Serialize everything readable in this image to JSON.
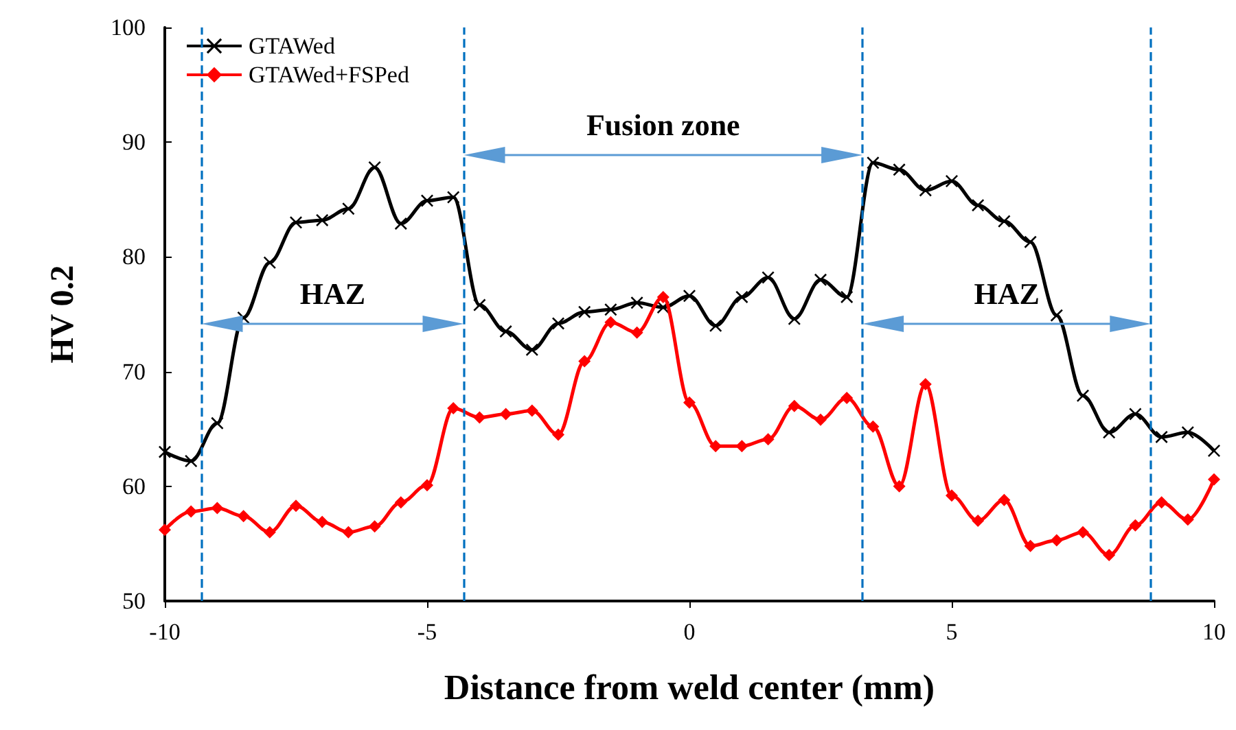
{
  "chart_data": {
    "type": "line",
    "xlabel": "Distance from weld center (mm)",
    "ylabel": "HV 0.2",
    "x": [
      -10,
      -9.5,
      -9,
      -8.5,
      -8,
      -7.5,
      -7,
      -6.5,
      -6,
      -5.5,
      -5,
      -4.5,
      -4,
      -3.5,
      -3,
      -2.5,
      -2,
      -1.5,
      -1,
      -0.5,
      0,
      0.5,
      1,
      1.5,
      2,
      2.5,
      3,
      3.5,
      4,
      4.5,
      5,
      5.5,
      6,
      6.5,
      7,
      7.5,
      8,
      8.5,
      9,
      9.5,
      10
    ],
    "series": [
      {
        "name": "GTAWed",
        "color": "#000000",
        "marker": "cross",
        "values": [
          63.0,
          62.2,
          65.5,
          74.7,
          79.5,
          83.0,
          83.2,
          84.2,
          87.8,
          82.9,
          84.9,
          85.2,
          75.8,
          73.5,
          71.9,
          74.2,
          75.2,
          75.4,
          76.0,
          75.6,
          76.6,
          74.0,
          76.5,
          78.2,
          74.6,
          78.0,
          76.5,
          88.2,
          87.6,
          85.8,
          86.6,
          84.5,
          83.1,
          81.3,
          74.9,
          67.9,
          64.7,
          66.3,
          64.3,
          64.7,
          63.1
        ]
      },
      {
        "name": "GTAWed+FSPed",
        "color": "#ff0000",
        "marker": "diamond",
        "values": [
          56.2,
          57.8,
          58.1,
          57.4,
          56.0,
          58.3,
          56.9,
          56.0,
          56.5,
          58.6,
          60.1,
          66.8,
          66.0,
          66.3,
          66.6,
          64.5,
          70.9,
          74.3,
          73.4,
          76.5,
          67.3,
          63.5,
          63.5,
          64.1,
          67.0,
          65.8,
          67.7,
          65.2,
          60.0,
          68.9,
          59.2,
          57.0,
          58.8,
          54.8,
          55.3,
          56.0,
          54.0,
          56.6,
          58.6,
          57.1,
          60.6
        ]
      }
    ],
    "xlim": [
      -10,
      10
    ],
    "xticks": [
      -10,
      -5,
      0,
      5,
      10
    ],
    "ylim": [
      50,
      100
    ],
    "yticks": [
      50,
      60,
      70,
      80,
      90,
      100
    ],
    "ref_lines": [
      {
        "axis": "x",
        "value": -9.3,
        "color": "#0070c0",
        "line_style": "dashed"
      },
      {
        "axis": "x",
        "value": -4.3,
        "color": "#0070c0",
        "line_style": "dashed"
      },
      {
        "axis": "x",
        "value": 3.3,
        "color": "#0070c0",
        "line_style": "dashed"
      },
      {
        "axis": "x",
        "value": 8.8,
        "color": "#0070c0",
        "line_style": "dashed"
      }
    ],
    "annotations": [
      "HAZ",
      "Fusion zone",
      "HAZ"
    ],
    "legend": "top left",
    "grid": false,
    "line_style": "solid"
  }
}
